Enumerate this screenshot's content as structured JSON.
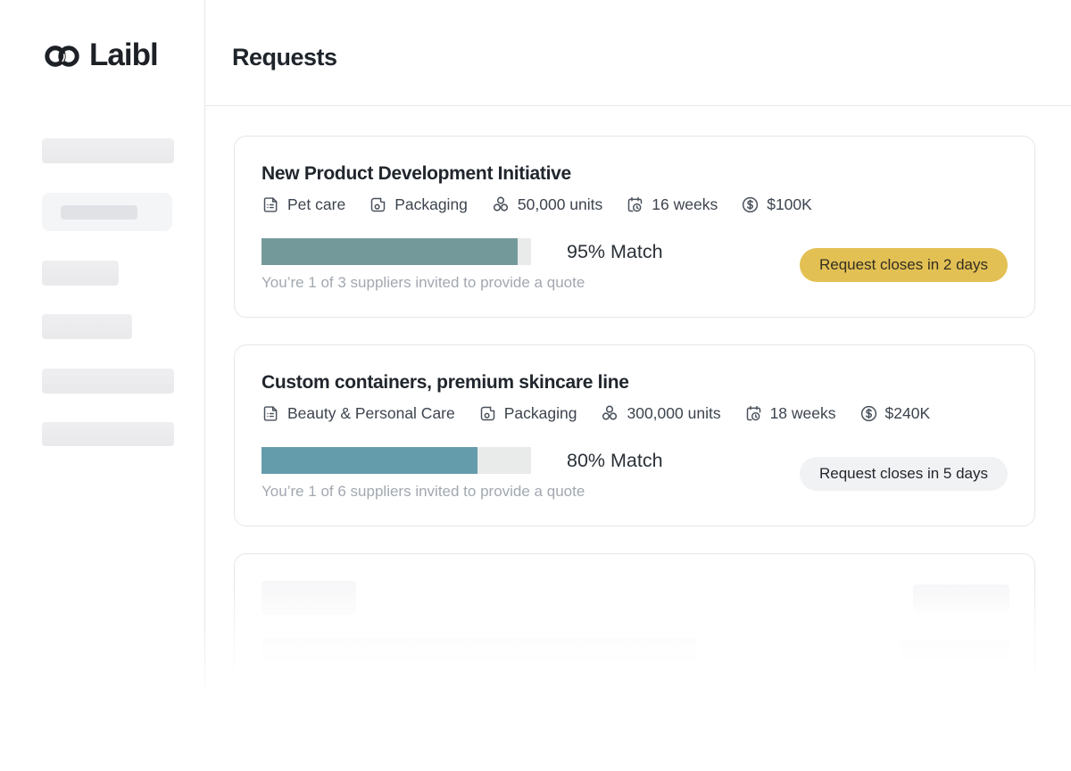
{
  "brand": {
    "name": "Laibl",
    "logo_icon": "interlocked-rings-icon"
  },
  "page": {
    "title": "Requests"
  },
  "colors": {
    "badge": {
      "warning": {
        "bg": "#e3c054",
        "text": "#332f22"
      },
      "neutral": {
        "bg": "#f1f2f4",
        "text": "#23272e"
      }
    }
  },
  "requests": [
    {
      "title": "New Product Development Initiative",
      "meta": [
        {
          "icon": "category-form-icon",
          "label": "Pet care"
        },
        {
          "icon": "package-icon",
          "label": "Packaging"
        },
        {
          "icon": "units-icon",
          "label": "50,000 units"
        },
        {
          "icon": "timeline-calendar-icon",
          "label": "16 weeks"
        },
        {
          "icon": "budget-dollar-icon",
          "label": "$100K"
        }
      ],
      "match_percent": 95,
      "match_label": "95% Match",
      "bar_color": "#74999b",
      "suppliers_note": "You’re 1 of 3 suppliers invited to provide a quote",
      "closes_badge": {
        "label": "Request closes in 2 days",
        "variant": "warning"
      }
    },
    {
      "title": "Custom containers, premium skincare line",
      "meta": [
        {
          "icon": "category-form-icon",
          "label": "Beauty & Personal Care"
        },
        {
          "icon": "package-icon",
          "label": "Packaging"
        },
        {
          "icon": "units-icon",
          "label": "300,000 units"
        },
        {
          "icon": "timeline-calendar-icon",
          "label": "18 weeks"
        },
        {
          "icon": "budget-dollar-icon",
          "label": "$240K"
        }
      ],
      "match_percent": 80,
      "match_label": "80% Match",
      "bar_color": "#649cab",
      "suppliers_note": "You’re 1 of 6 suppliers invited to provide a quote",
      "closes_badge": {
        "label": "Request closes in 5 days",
        "variant": "neutral"
      }
    }
  ]
}
